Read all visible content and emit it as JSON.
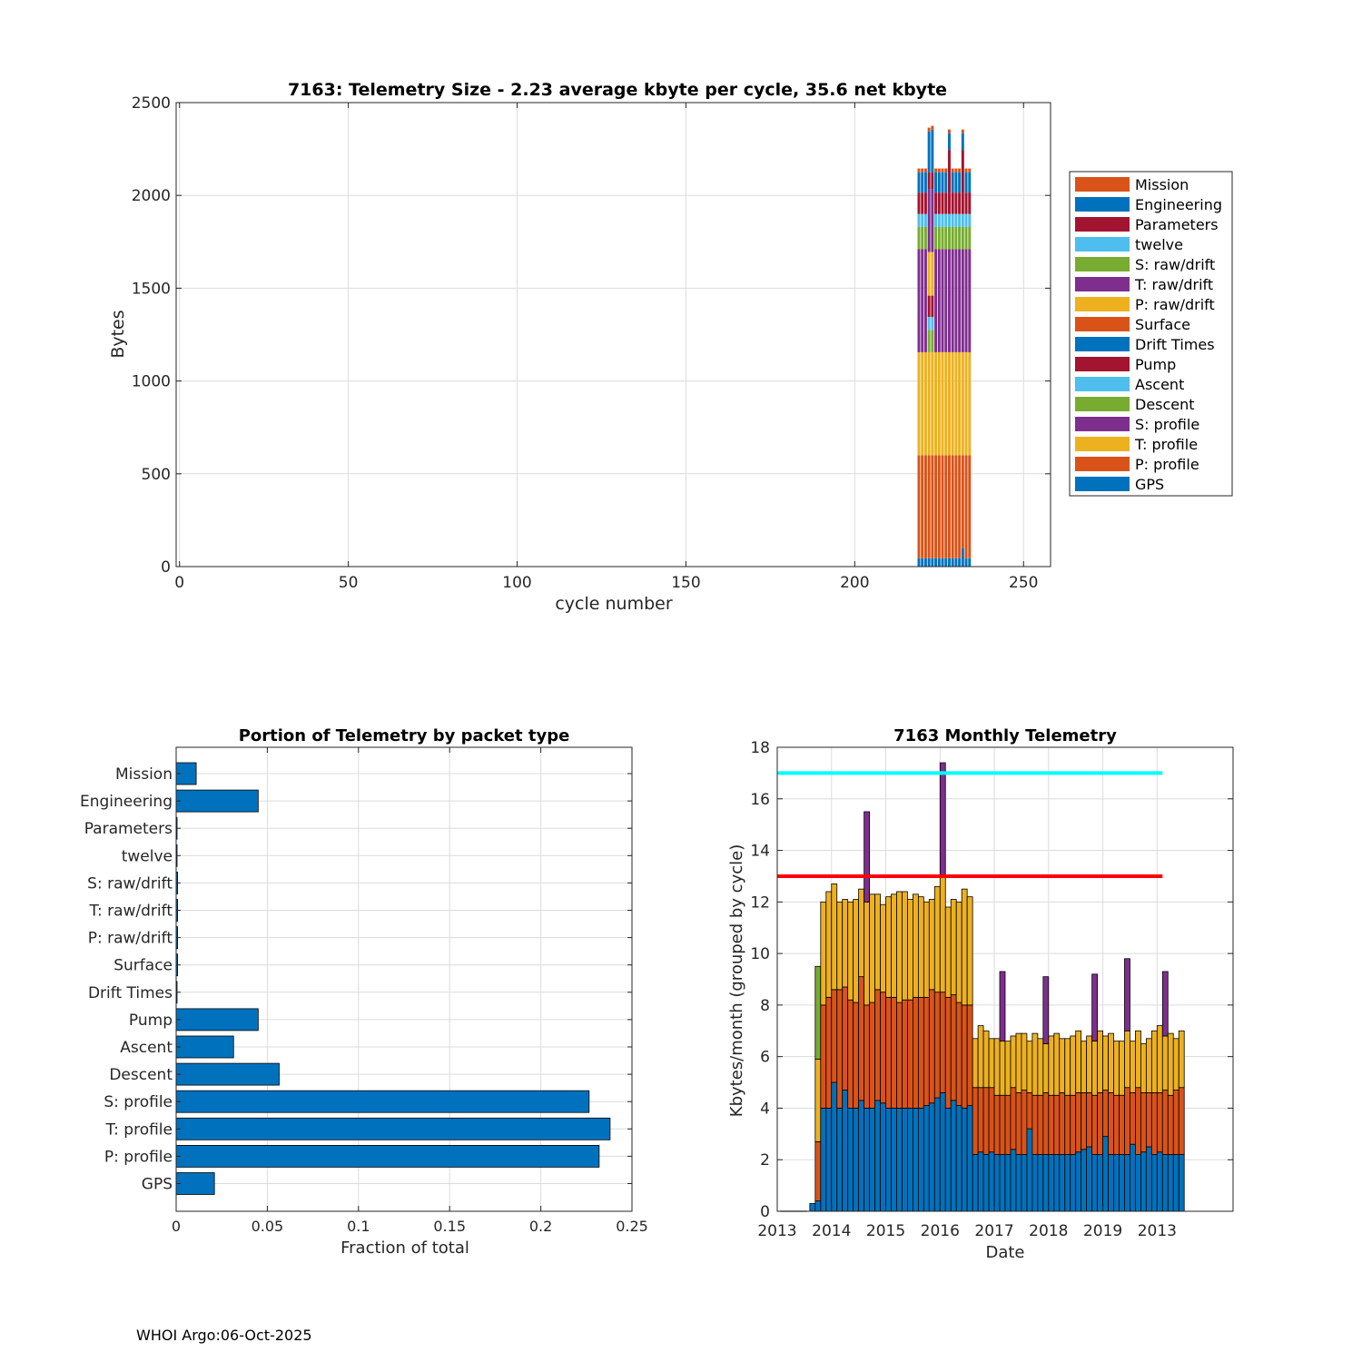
{
  "footer": "WHOI Argo:06-Oct-2025",
  "chart_data": [
    {
      "id": "telemetry_size",
      "type": "bar",
      "stacked": true,
      "title": "7163: Telemetry Size - 2.23 average kbyte per cycle,   35.6 net kbyte",
      "xlabel": "cycle number",
      "ylabel": "Bytes",
      "xlim": [
        -1,
        258
      ],
      "ylim": [
        0,
        2500
      ],
      "xticks": [
        0,
        50,
        100,
        150,
        200,
        250
      ],
      "yticks": [
        0,
        500,
        1000,
        1500,
        2000,
        2500
      ],
      "grid": true,
      "legend_position": "right",
      "legend": [
        "Mission",
        "Engineering",
        "Parameters",
        "twelve",
        "S: raw/drift",
        "T: raw/drift",
        "P: raw/drift",
        "Surface",
        "Drift Times",
        "Pump",
        "Ascent",
        "Descent",
        "S: profile",
        "T: profile",
        "P: profile",
        "GPS"
      ],
      "series_order_bottom_to_top": [
        "GPS",
        "P: profile",
        "T: profile",
        "S: profile",
        "Descent",
        "Ascent",
        "Pump",
        "Drift Times",
        "Surface",
        "P: raw/drift",
        "T: raw/drift",
        "S: raw/drift",
        "twelve",
        "Parameters",
        "Engineering",
        "Mission"
      ],
      "colors": {
        "Mission": "#D95319",
        "Engineering": "#0072BD",
        "Parameters": "#A2142F",
        "twelve": "#4DBEEE",
        "S: raw/drift": "#77AC30",
        "T: raw/drift": "#7E2F8E",
        "P: raw/drift": "#EDB120",
        "Surface": "#D95319",
        "Drift Times": "#0072BD",
        "Pump": "#A2142F",
        "Ascent": "#4DBEEE",
        "Descent": "#77AC30",
        "S: profile": "#7E2F8E",
        "T: profile": "#EDB120",
        "P: profile": "#D95319",
        "GPS": "#0072BD"
      },
      "x": [
        219,
        220,
        221,
        222,
        223,
        224,
        225,
        226,
        227,
        228,
        229,
        230,
        231,
        232,
        233,
        234
      ],
      "series": [
        {
          "name": "GPS",
          "values": [
            45,
            45,
            45,
            45,
            45,
            45,
            45,
            45,
            45,
            45,
            45,
            45,
            45,
            100,
            45,
            45
          ]
        },
        {
          "name": "P: profile",
          "values": [
            555,
            555,
            555,
            555,
            555,
            555,
            555,
            555,
            555,
            555,
            555,
            555,
            555,
            500,
            555,
            555
          ]
        },
        {
          "name": "T: profile",
          "values": [
            555,
            555,
            555,
            555,
            555,
            555,
            555,
            555,
            555,
            555,
            555,
            555,
            555,
            555,
            555,
            555
          ]
        },
        {
          "name": "S: profile",
          "values": [
            555,
            555,
            555,
            0,
            0,
            555,
            555,
            555,
            555,
            555,
            555,
            555,
            555,
            555,
            555,
            555
          ]
        },
        {
          "name": "Descent",
          "values": [
            120,
            120,
            120,
            120,
            120,
            120,
            120,
            120,
            120,
            120,
            120,
            120,
            120,
            120,
            120,
            120
          ]
        },
        {
          "name": "Ascent",
          "values": [
            70,
            70,
            70,
            70,
            70,
            70,
            70,
            70,
            70,
            70,
            70,
            70,
            70,
            70,
            70,
            70
          ]
        },
        {
          "name": "Pump",
          "values": [
            115,
            115,
            115,
            115,
            115,
            115,
            115,
            115,
            115,
            115,
            115,
            115,
            115,
            115,
            115,
            115
          ]
        },
        {
          "name": "Drift Times",
          "values": [
            0,
            0,
            0,
            0,
            0,
            0,
            0,
            0,
            0,
            0,
            0,
            0,
            0,
            0,
            0,
            0
          ]
        },
        {
          "name": "Surface",
          "values": [
            0,
            0,
            0,
            0,
            0,
            0,
            0,
            0,
            0,
            0,
            0,
            0,
            0,
            0,
            0,
            0
          ]
        },
        {
          "name": "P: raw/drift",
          "values": [
            0,
            0,
            0,
            235,
            235,
            0,
            0,
            0,
            0,
            0,
            0,
            0,
            0,
            0,
            0,
            0
          ]
        },
        {
          "name": "T: raw/drift",
          "values": [
            0,
            0,
            0,
            340,
            340,
            0,
            0,
            0,
            0,
            0,
            0,
            0,
            0,
            0,
            0,
            0
          ]
        },
        {
          "name": "S: raw/drift",
          "values": [
            0,
            0,
            0,
            0,
            0,
            0,
            0,
            0,
            0,
            0,
            0,
            0,
            0,
            0,
            0,
            0
          ]
        },
        {
          "name": "twelve",
          "values": [
            0,
            0,
            0,
            0,
            0,
            0,
            0,
            0,
            0,
            0,
            0,
            0,
            0,
            0,
            0,
            0
          ]
        },
        {
          "name": "Parameters",
          "values": [
            0,
            0,
            0,
            90,
            90,
            0,
            0,
            0,
            0,
            230,
            0,
            0,
            0,
            230,
            0,
            0
          ]
        },
        {
          "name": "Engineering",
          "values": [
            110,
            110,
            110,
            220,
            230,
            110,
            110,
            110,
            110,
            90,
            110,
            110,
            110,
            90,
            110,
            110
          ]
        },
        {
          "name": "Mission",
          "values": [
            20,
            20,
            20,
            20,
            20,
            20,
            20,
            20,
            20,
            20,
            20,
            20,
            20,
            20,
            20,
            20
          ]
        }
      ]
    },
    {
      "id": "portion_by_packet",
      "type": "bar",
      "orientation": "horizontal",
      "title": "Portion of Telemetry by packet type",
      "xlabel": "Fraction of total",
      "ylabel": "",
      "xlim": [
        0,
        0.25
      ],
      "xticks": [
        0,
        0.05,
        0.1,
        0.15,
        0.2,
        0.25
      ],
      "xtick_labels": [
        "0",
        "0.05",
        "0.1",
        "0.15",
        "0.2",
        "0.25"
      ],
      "grid": true,
      "color": "#0072BD",
      "categories": [
        "Mission",
        "Engineering",
        "Parameters",
        "twelve",
        "S: raw/drift",
        "T: raw/drift",
        "P: raw/drift",
        "Surface",
        "Drift Times",
        "Pump",
        "Ascent",
        "Descent",
        "S: profile",
        "T: profile",
        "P: profile",
        "GPS"
      ],
      "values": [
        0.011,
        0.045,
        0.0005,
        0.0005,
        0.0008,
        0.0008,
        0.0008,
        0.0008,
        0.0005,
        0.045,
        0.0315,
        0.0565,
        0.2265,
        0.238,
        0.232,
        0.021
      ]
    },
    {
      "id": "monthly_telemetry",
      "type": "bar",
      "stacked": true,
      "title": "7163 Monthly Telemetry",
      "xlabel": "Date",
      "ylabel": "Kbytes/month (grouped by cycle)",
      "xlim": [
        0,
        84
      ],
      "ylim": [
        0,
        18
      ],
      "yticks": [
        0,
        2,
        4,
        6,
        8,
        10,
        12,
        14,
        16,
        18
      ],
      "xticks": [
        0,
        10,
        20,
        30,
        40,
        50,
        60,
        70
      ],
      "xtick_labels": [
        "2013",
        "2014",
        "2015",
        "2016",
        "2017",
        "2018",
        "2019",
        "2013"
      ],
      "grid": true,
      "series_order_bottom_to_top": [
        "base",
        "middle",
        "upper",
        "descent_spike",
        "profile_spike"
      ],
      "colors": {
        "base": "#0072BD",
        "middle": "#D95319",
        "upper": "#EDB120",
        "descent_spike": "#77AC30",
        "profile_spike": "#7E2F8E"
      },
      "start_month_index": 6,
      "base": [
        0.3,
        0.4,
        4.0,
        4.0,
        5.0,
        4.0,
        4.7,
        4.0,
        4.0,
        4.3,
        4.0,
        4.0,
        4.3,
        4.2,
        4.0,
        4.0,
        4.0,
        4.0,
        4.0,
        4.0,
        4.0,
        4.1,
        4.2,
        4.4,
        4.6,
        4.0,
        4.3,
        4.1,
        4.0,
        4.1,
        2.2,
        2.3,
        2.2,
        2.3,
        2.2,
        2.2,
        2.2,
        2.4,
        2.2,
        2.2,
        3.2,
        2.2,
        2.2,
        2.2,
        2.2,
        2.2,
        2.2,
        2.2,
        2.2,
        2.3,
        2.4,
        2.5,
        2.2,
        2.2,
        2.9,
        2.2,
        2.2,
        2.2,
        2.2,
        2.6,
        2.2,
        2.3,
        2.5,
        2.2,
        2.3,
        2.2,
        2.2,
        2.2,
        2.2
      ],
      "middle": [
        0,
        2.3,
        4.0,
        4.3,
        3.6,
        4.6,
        4.0,
        4.2,
        4.1,
        4.8,
        4.0,
        4.1,
        4.3,
        4.3,
        4.3,
        4.3,
        4.1,
        4.2,
        4.2,
        4.3,
        4.3,
        4.2,
        4.4,
        4.1,
        3.9,
        4.3,
        4.1,
        4.0,
        4.0,
        3.9,
        2.6,
        2.5,
        2.6,
        2.5,
        2.3,
        2.3,
        2.3,
        2.4,
        2.4,
        2.5,
        1.4,
        2.3,
        2.3,
        2.4,
        2.3,
        2.3,
        2.4,
        2.3,
        2.3,
        2.3,
        2.2,
        2.1,
        2.3,
        2.4,
        1.8,
        2.4,
        2.3,
        2.3,
        2.6,
        2.0,
        2.6,
        2.3,
        2.1,
        2.4,
        2.3,
        2.5,
        2.3,
        2.5,
        2.6
      ],
      "upper": [
        0,
        3.2,
        4.0,
        4.1,
        4.1,
        3.4,
        3.4,
        3.8,
        4.0,
        3.4,
        4.0,
        4.2,
        3.7,
        3.4,
        3.9,
        4.0,
        4.3,
        4.2,
        3.9,
        4.0,
        3.9,
        3.7,
        3.5,
        4.1,
        4.5,
        3.5,
        3.7,
        3.9,
        4.5,
        4.2,
        1.9,
        2.4,
        2.2,
        1.9,
        2.2,
        2.1,
        2.1,
        2.0,
        2.3,
        2.2,
        2.0,
        2.4,
        2.2,
        1.9,
        2.3,
        2.4,
        2.1,
        2.2,
        2.3,
        2.4,
        2.0,
        2.2,
        2.1,
        2.4,
        2.1,
        2.3,
        2.1,
        2.1,
        2.2,
        2.0,
        2.2,
        1.9,
        2.1,
        2.4,
        2.6,
        2.1,
        2.4,
        2.0,
        2.2
      ],
      "descent_spike": [
        0,
        3.6,
        0,
        0,
        0,
        0,
        0,
        0,
        0,
        0,
        0,
        0,
        0,
        0,
        0,
        0,
        0,
        0,
        0,
        0,
        0,
        0,
        0,
        0,
        0,
        0,
        0,
        0,
        0,
        0,
        0,
        0,
        0,
        0,
        0,
        0,
        0,
        0,
        0,
        0,
        0,
        0,
        0,
        0,
        0,
        0,
        0,
        0,
        0,
        0,
        0,
        0,
        0,
        0,
        0,
        0,
        0,
        0,
        0,
        0,
        0,
        0,
        0,
        0,
        0,
        0,
        0,
        0,
        0
      ],
      "profile_spike": [
        0,
        0,
        0,
        0,
        0,
        0,
        0,
        0,
        0,
        0,
        3.5,
        0,
        0,
        0,
        0,
        0,
        0,
        0,
        0,
        0,
        0,
        0,
        0,
        0,
        4.4,
        0,
        0,
        0,
        0,
        0,
        0,
        0,
        0,
        0,
        0,
        2.7,
        0,
        0,
        0,
        0,
        0,
        0,
        0,
        2.6,
        0,
        0,
        0,
        0,
        0,
        0,
        0,
        0,
        2.6,
        0,
        0,
        0,
        0,
        0,
        2.8,
        0,
        0,
        0,
        0,
        0,
        0,
        2.5,
        0,
        0,
        0
      ],
      "reference_lines": [
        {
          "name": "upper limit",
          "value": 17,
          "color": "#00FFFF",
          "x_range": [
            0,
            71
          ]
        },
        {
          "name": "lower limit",
          "value": 13,
          "color": "#FF0000",
          "x_range": [
            0,
            71
          ]
        }
      ],
      "pre_deployment_line": {
        "x_range": [
          0.5,
          5.5
        ],
        "value": 0
      }
    }
  ]
}
